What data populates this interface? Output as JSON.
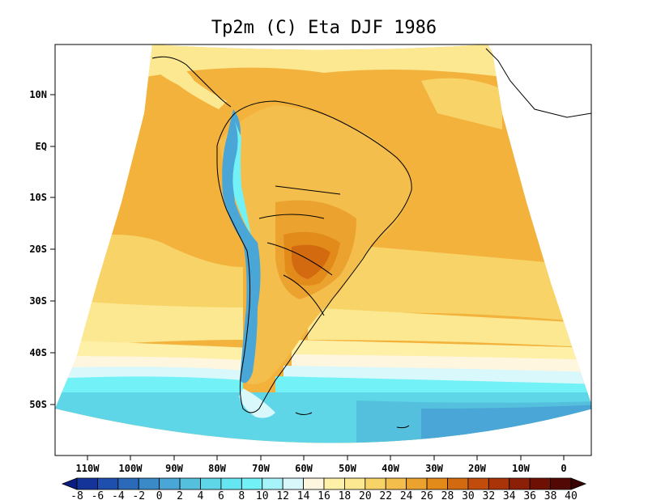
{
  "title": "Tp2m (C) Eta DJF 1986",
  "map": {
    "type": "filled-contour",
    "lat_ticks": [
      "10N",
      "EQ",
      "10S",
      "20S",
      "30S",
      "40S",
      "50S"
    ],
    "lon_ticks": [
      "110W",
      "100W",
      "90W",
      "80W",
      "70W",
      "60W",
      "50W",
      "40W",
      "30W",
      "20W",
      "10W",
      "0"
    ]
  },
  "colorbar": {
    "levels": [
      "-8",
      "-6",
      "-4",
      "-2",
      "0",
      "2",
      "4",
      "6",
      "8",
      "10",
      "12",
      "14",
      "16",
      "18",
      "20",
      "22",
      "24",
      "26",
      "28",
      "30",
      "32",
      "34",
      "36",
      "38",
      "40"
    ],
    "colors": [
      "#0a1e82",
      "#14349a",
      "#1f4fae",
      "#2b6ab8",
      "#3a8ac8",
      "#4aa6d6",
      "#55c0de",
      "#5fd6e8",
      "#66e6f0",
      "#72f2f6",
      "#a6f4fa",
      "#d8f8fc",
      "#fff6e0",
      "#fff0a8",
      "#fce890",
      "#f8d468",
      "#f4be4c",
      "#eca22e",
      "#e28a1a",
      "#d46a10",
      "#c24c0c",
      "#a83408",
      "#8c2006",
      "#6e1004",
      "#520804",
      "#3a0202"
    ]
  }
}
